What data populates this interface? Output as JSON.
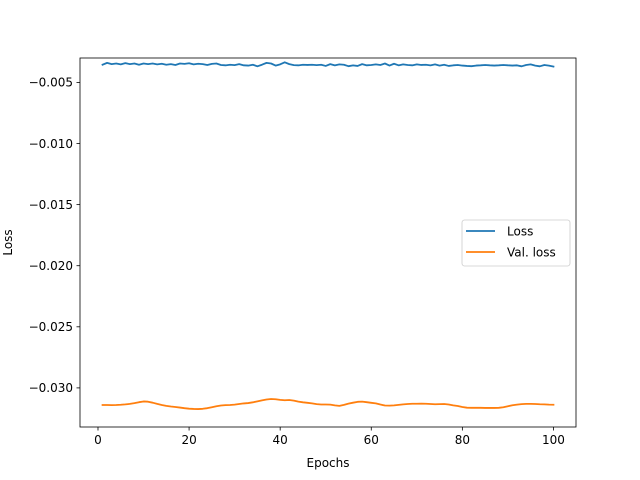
{
  "chart_data": {
    "type": "line",
    "title": "",
    "xlabel": "Epochs",
    "ylabel": "Loss",
    "xlim": [
      -3.95,
      104.95
    ],
    "ylim": [
      -0.0332,
      -0.003
    ],
    "xticks": [
      0,
      20,
      40,
      60,
      80,
      100
    ],
    "xtick_labels": [
      "0",
      "20",
      "40",
      "60",
      "80",
      "100"
    ],
    "yticks": [
      -0.005,
      -0.01,
      -0.015,
      -0.02,
      -0.025,
      -0.03
    ],
    "ytick_labels": [
      "−0.005",
      "−0.010",
      "−0.015",
      "−0.020",
      "−0.025",
      "−0.030"
    ],
    "grid": false,
    "legend_position": "center-right",
    "x": [
      1,
      2,
      3,
      4,
      5,
      6,
      7,
      8,
      9,
      10,
      11,
      12,
      13,
      14,
      15,
      16,
      17,
      18,
      19,
      20,
      21,
      22,
      23,
      24,
      25,
      26,
      27,
      28,
      29,
      30,
      31,
      32,
      33,
      34,
      35,
      36,
      37,
      38,
      39,
      40,
      41,
      42,
      43,
      44,
      45,
      46,
      47,
      48,
      49,
      50,
      51,
      52,
      53,
      54,
      55,
      56,
      57,
      58,
      59,
      60,
      61,
      62,
      63,
      64,
      65,
      66,
      67,
      68,
      69,
      70,
      71,
      72,
      73,
      74,
      75,
      76,
      77,
      78,
      79,
      80,
      81,
      82,
      83,
      84,
      85,
      86,
      87,
      88,
      89,
      90,
      91,
      92,
      93,
      94,
      95,
      96,
      97,
      98,
      99,
      100
    ],
    "series": [
      {
        "name": "Loss",
        "color": "#1f77b4",
        "values": [
          -0.00355,
          -0.0034,
          -0.0035,
          -0.00345,
          -0.00352,
          -0.00342,
          -0.0035,
          -0.00345,
          -0.00355,
          -0.00345,
          -0.0035,
          -0.00345,
          -0.00352,
          -0.00347,
          -0.00355,
          -0.0035,
          -0.00357,
          -0.00345,
          -0.00348,
          -0.00343,
          -0.00352,
          -0.00347,
          -0.0035,
          -0.00357,
          -0.00348,
          -0.00345,
          -0.00357,
          -0.0036,
          -0.00355,
          -0.00358,
          -0.0035,
          -0.0036,
          -0.00362,
          -0.00355,
          -0.00368,
          -0.00355,
          -0.0034,
          -0.00345,
          -0.00362,
          -0.00352,
          -0.00335,
          -0.0035,
          -0.00358,
          -0.0036,
          -0.00355,
          -0.00357,
          -0.00355,
          -0.00358,
          -0.00355,
          -0.00365,
          -0.0035,
          -0.0036,
          -0.00352,
          -0.00355,
          -0.00367,
          -0.0036,
          -0.00365,
          -0.0035,
          -0.0036,
          -0.00357,
          -0.00352,
          -0.00357,
          -0.00345,
          -0.00362,
          -0.00347,
          -0.0036,
          -0.00352,
          -0.00357,
          -0.0036,
          -0.00352,
          -0.00357,
          -0.00355,
          -0.0036,
          -0.00352,
          -0.00362,
          -0.00355,
          -0.00365,
          -0.0036,
          -0.00357,
          -0.00362,
          -0.00365,
          -0.00367,
          -0.00362,
          -0.0036,
          -0.00357,
          -0.0036,
          -0.00362,
          -0.0036,
          -0.00357,
          -0.0036,
          -0.00362,
          -0.0036,
          -0.00368,
          -0.00357,
          -0.00352,
          -0.00362,
          -0.00368,
          -0.00357,
          -0.00362,
          -0.0037
        ]
      },
      {
        "name": "Val. loss",
        "color": "#ff7f0e",
        "values": [
          -0.0314,
          -0.0314,
          -0.03141,
          -0.0314,
          -0.03138,
          -0.03135,
          -0.03131,
          -0.03125,
          -0.03117,
          -0.03111,
          -0.03113,
          -0.03121,
          -0.03131,
          -0.0314,
          -0.03147,
          -0.03152,
          -0.03156,
          -0.03161,
          -0.03166,
          -0.0317,
          -0.03172,
          -0.03173,
          -0.03171,
          -0.03166,
          -0.03158,
          -0.0315,
          -0.03144,
          -0.03141,
          -0.0314,
          -0.03137,
          -0.03132,
          -0.03127,
          -0.03124,
          -0.03118,
          -0.0311,
          -0.03102,
          -0.03095,
          -0.03091,
          -0.03093,
          -0.03098,
          -0.03101,
          -0.03099,
          -0.03104,
          -0.03112,
          -0.03118,
          -0.03122,
          -0.03127,
          -0.03133,
          -0.03136,
          -0.03136,
          -0.03137,
          -0.03143,
          -0.03147,
          -0.03139,
          -0.03129,
          -0.03121,
          -0.03114,
          -0.03112,
          -0.03117,
          -0.03122,
          -0.03127,
          -0.03136,
          -0.03144,
          -0.03145,
          -0.03143,
          -0.03139,
          -0.03135,
          -0.03132,
          -0.0313,
          -0.0313,
          -0.03129,
          -0.0313,
          -0.03132,
          -0.03134,
          -0.03133,
          -0.03132,
          -0.03136,
          -0.03143,
          -0.03148,
          -0.03156,
          -0.03162,
          -0.03163,
          -0.03163,
          -0.03163,
          -0.03164,
          -0.03164,
          -0.03164,
          -0.03163,
          -0.03158,
          -0.0315,
          -0.03142,
          -0.03137,
          -0.03133,
          -0.03131,
          -0.03131,
          -0.03132,
          -0.03134,
          -0.03135,
          -0.03137,
          -0.03138
        ]
      }
    ]
  }
}
